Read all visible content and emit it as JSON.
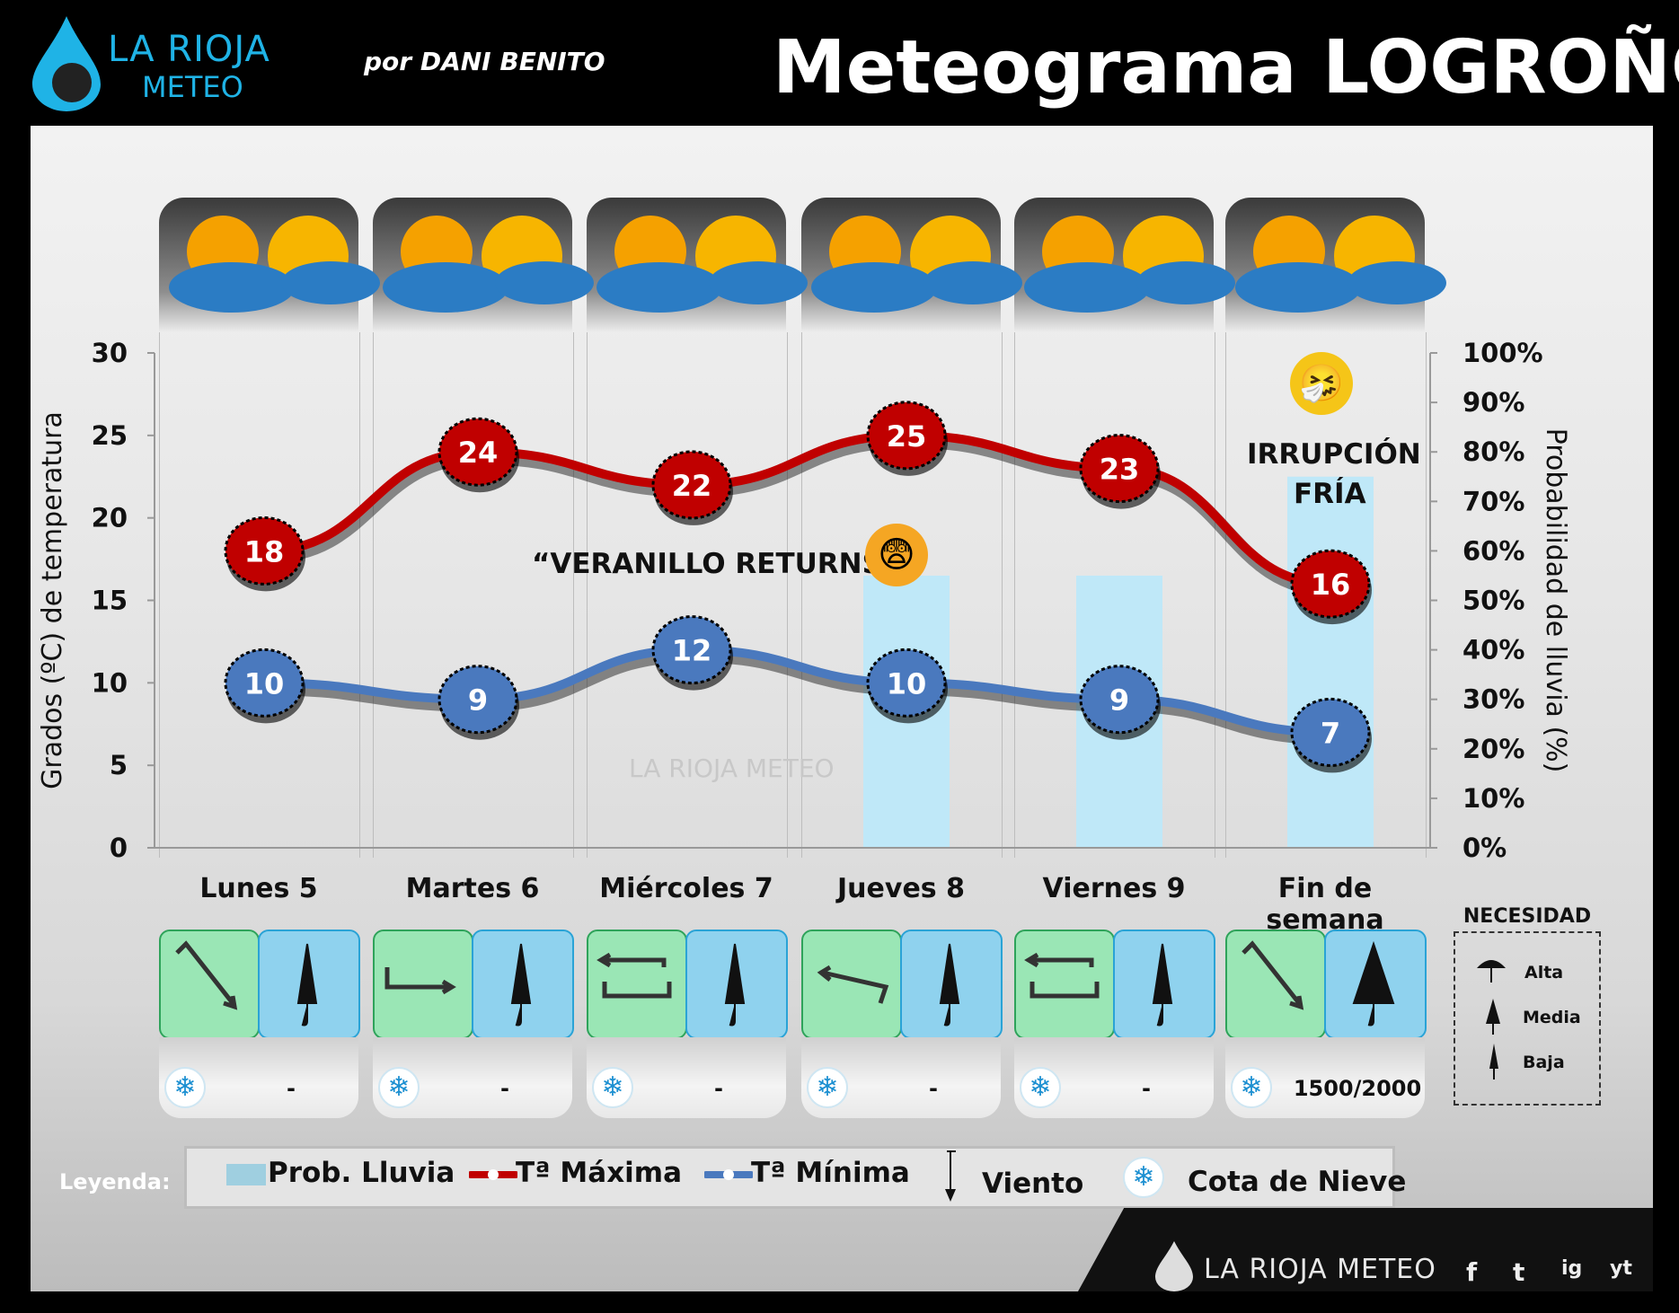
{
  "header": {
    "logo_line1": "LA RIOJA",
    "logo_line2": "METEO",
    "byline": "por DANI BENITO",
    "title": "Meteograma LOGROÑO"
  },
  "chart_data": {
    "type": "line",
    "categories": [
      "Lunes 5",
      "Martes 6",
      "Miércoles 7",
      "Jueves 8",
      "Viernes 9",
      "Fin de semana"
    ],
    "series": [
      {
        "name": "Tª Máxima",
        "values": [
          18,
          24,
          22,
          25,
          23,
          16
        ],
        "color": "#c00000"
      },
      {
        "name": "Tª Mínima",
        "values": [
          10,
          9,
          12,
          10,
          9,
          7
        ],
        "color": "#4a79be"
      },
      {
        "name": "Prob. Lluvia",
        "values": [
          0,
          0,
          0,
          55,
          55,
          75
        ],
        "type": "bar",
        "axis": "right",
        "color": "#bfe8f8"
      }
    ],
    "ylabel": "Grados (ºC) de temperatura",
    "ylim": [
      0,
      30
    ],
    "yticks": [
      "0",
      "5",
      "10",
      "15",
      "20",
      "25",
      "30"
    ],
    "y2label": "Probabilidad de lluvia (%)",
    "y2lim": [
      0,
      100
    ],
    "y2ticks": [
      "0%",
      "10%",
      "20%",
      "30%",
      "40%",
      "50%",
      "60%",
      "70%",
      "80%",
      "90%",
      "100%"
    ],
    "annotations": [
      "“VERANILLO RETURNS”",
      "IRRUPCIÓN",
      "FRÍA"
    ],
    "watermark": "LA RIOJA METEO"
  },
  "wind": [
    {
      "icon": "arrow-nw-se-icon"
    },
    {
      "icon": "arrow-w-e-icon"
    },
    {
      "icon": "arrow-variable-icon"
    },
    {
      "icon": "arrow-e-w-icon"
    },
    {
      "icon": "arrow-variable-icon"
    },
    {
      "icon": "arrow-nw-se-icon"
    }
  ],
  "umbrella": [
    "Baja",
    "Baja",
    "Baja",
    "Baja",
    "Baja",
    "Media"
  ],
  "snow_level": [
    "-",
    "-",
    "-",
    "-",
    "-",
    "1500/2000"
  ],
  "necesidad": {
    "title": "NECESIDAD",
    "levels": [
      "Alta",
      "Media",
      "Baja"
    ]
  },
  "legend": {
    "label": "Leyenda:",
    "items": [
      "Prob. Lluvia",
      "Tª Máxima",
      "Tª Mínima",
      "Viento",
      "Cota de Nieve"
    ]
  },
  "footer": {
    "brand": "LA RIOJA METEO",
    "social": [
      "f",
      "t",
      "ig",
      "yt"
    ]
  }
}
